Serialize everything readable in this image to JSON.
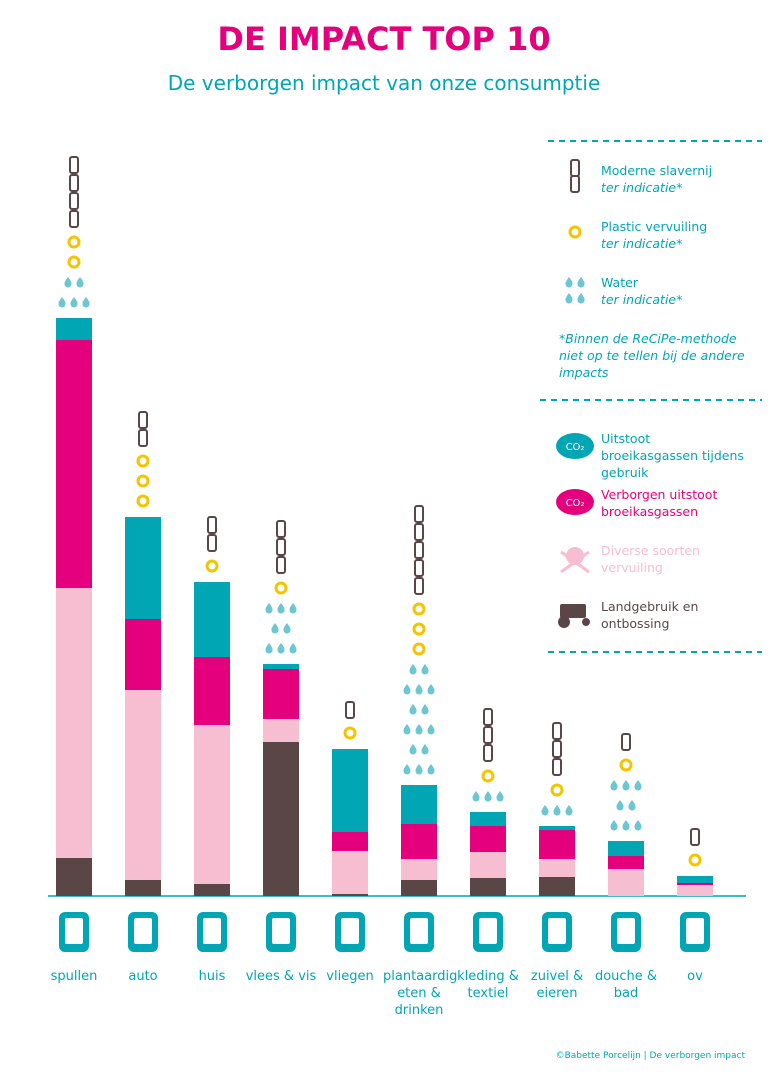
{
  "chart_data": {
    "type": "bar",
    "stacked": true,
    "title": "DE IMPACT TOP 10",
    "subtitle": "De verborgen impact van onze consumptie",
    "categories": [
      "spullen",
      "auto",
      "huis",
      "vlees & vis",
      "vliegen",
      "plantaardig eten & drinken",
      "kleding & textiel",
      "zuivel & eieren",
      "douche & bad",
      "ov"
    ],
    "ylim": [
      0,
      600
    ],
    "series": [
      {
        "name": "Landgebruik en ontbossing",
        "color": "#5b4647",
        "values": [
          38,
          16,
          12,
          154,
          2,
          16,
          18,
          19,
          0,
          0
        ]
      },
      {
        "name": "Diverse soorten vervuiling",
        "color": "#f7bdd0",
        "values": [
          270,
          190,
          159,
          23,
          43,
          21,
          26,
          18,
          27,
          11
        ]
      },
      {
        "name": "Verborgen uitstoot broeikasgassen",
        "color": "#e4007d",
        "icon_text": "CO₂",
        "values": [
          248,
          71,
          68,
          50,
          19,
          35,
          26,
          29,
          13,
          2
        ]
      },
      {
        "name": "Uitstoot broeikasgassen tijdens gebruik",
        "color": "#00a6b4",
        "icon_text": "CO₂",
        "values": [
          22,
          102,
          75,
          5,
          83,
          39,
          14,
          4,
          15,
          7
        ]
      }
    ],
    "indicators": [
      {
        "name": "Water",
        "note": "ter indicatie*",
        "color": "#6cc6d3",
        "values": [
          2,
          0,
          0,
          3,
          0,
          6,
          1,
          1,
          3,
          0
        ]
      },
      {
        "name": "Plastic vervuiling",
        "note": "ter indicatie*",
        "color": "#f5c400",
        "values": [
          2,
          3,
          1,
          1,
          1,
          3,
          1,
          1,
          1,
          1
        ]
      },
      {
        "name": "Moderne slavernij",
        "note": "ter indicatie*",
        "color": "#5b4647",
        "values": [
          4,
          2,
          2,
          3,
          1,
          5,
          3,
          3,
          1,
          1
        ]
      }
    ],
    "footnote": "*Binnen de ReCiPe-methode niet op te tellen bij de andere impacts",
    "source": "©Babette Porcelijn | De verborgen impact"
  }
}
